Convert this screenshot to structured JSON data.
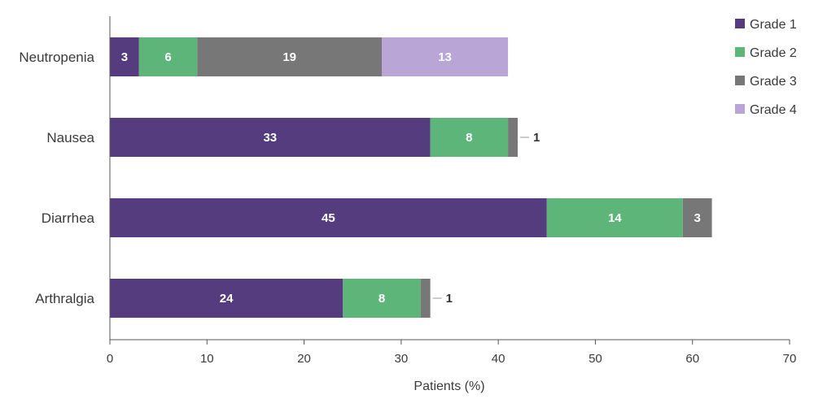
{
  "chart_data": {
    "type": "bar",
    "orientation": "horizontal",
    "stacked": true,
    "categories": [
      "Neutropenia",
      "Nausea",
      "Diarrhea",
      "Arthralgia"
    ],
    "series": [
      {
        "name": "Grade 1",
        "color": "#553c7f",
        "values": [
          3,
          33,
          45,
          24
        ]
      },
      {
        "name": "Grade 2",
        "color": "#5db57a",
        "values": [
          6,
          8,
          14,
          8
        ]
      },
      {
        "name": "Grade 3",
        "color": "#777777",
        "values": [
          19,
          1,
          3,
          1
        ]
      },
      {
        "name": "Grade 4",
        "color": "#b9a5d6",
        "values": [
          13,
          0,
          0,
          0
        ]
      }
    ],
    "xlabel": "Patients (%)",
    "xlim": [
      0,
      70
    ],
    "xticks": [
      "0",
      "10",
      "20",
      "30",
      "40",
      "50",
      "60",
      "70"
    ],
    "legend_position": "top-right",
    "grid": false
  }
}
